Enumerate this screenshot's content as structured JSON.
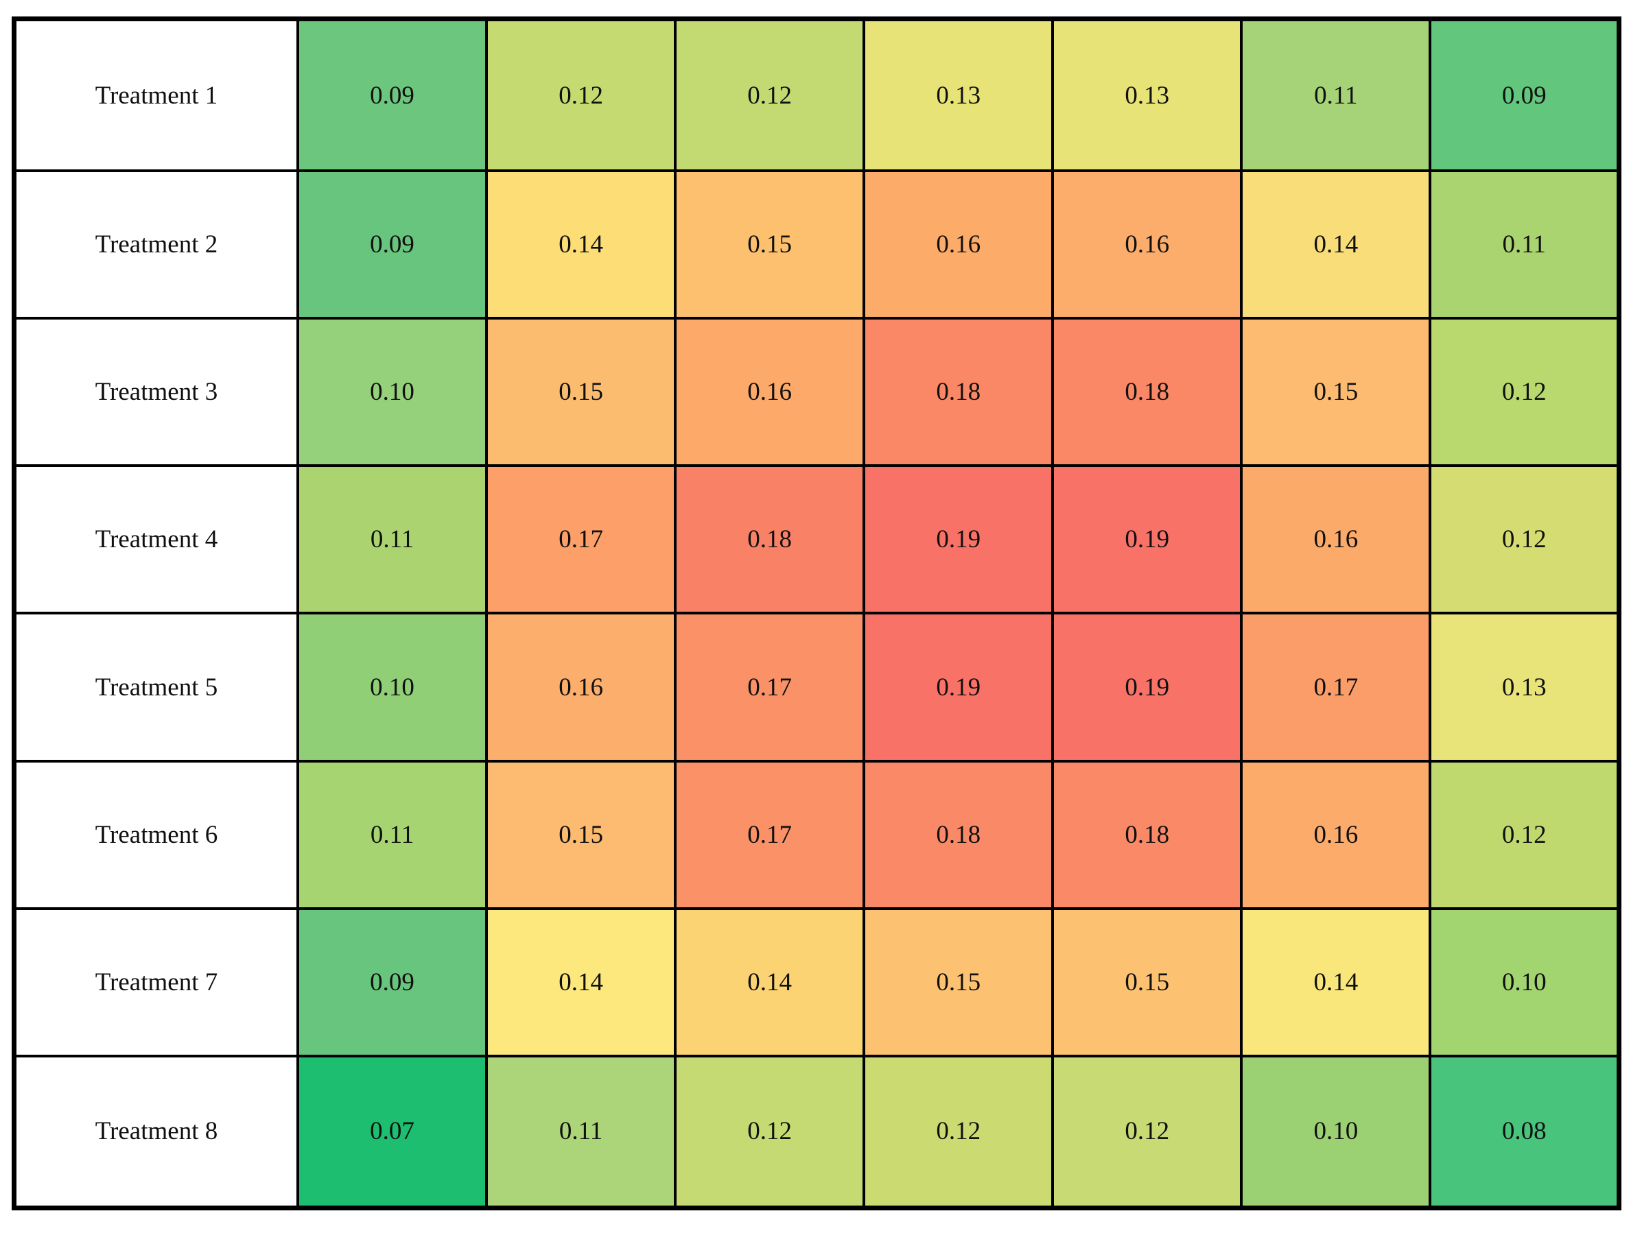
{
  "chart_data": {
    "type": "heatmap",
    "title": "",
    "row_labels": [
      "Treatment 1",
      "Treatment 2",
      "Treatment 3",
      "Treatment 4",
      "Treatment 5",
      "Treatment 6",
      "Treatment 7",
      "Treatment 8"
    ],
    "columns": 7,
    "values": [
      [
        0.09,
        0.12,
        0.12,
        0.13,
        0.13,
        0.11,
        0.09
      ],
      [
        0.09,
        0.14,
        0.15,
        0.16,
        0.16,
        0.14,
        0.11
      ],
      [
        0.1,
        0.15,
        0.16,
        0.18,
        0.18,
        0.15,
        0.12
      ],
      [
        0.11,
        0.17,
        0.18,
        0.19,
        0.19,
        0.16,
        0.12
      ],
      [
        0.1,
        0.16,
        0.17,
        0.19,
        0.19,
        0.17,
        0.13
      ],
      [
        0.11,
        0.15,
        0.17,
        0.18,
        0.18,
        0.16,
        0.12
      ],
      [
        0.09,
        0.14,
        0.14,
        0.15,
        0.15,
        0.14,
        0.1
      ],
      [
        0.07,
        0.11,
        0.12,
        0.12,
        0.12,
        0.1,
        0.08
      ]
    ],
    "value_format": "0.00",
    "value_range": [
      0.07,
      0.19
    ],
    "colormap": {
      "low": "#1ebe71",
      "mid": "#ece87e",
      "high": "#f97268"
    },
    "cell_colors": [
      [
        "#6cc67d",
        "#c6da72",
        "#c3da73",
        "#e8e377",
        "#e8e377",
        "#a6d377",
        "#62c67c"
      ],
      [
        "#67c57d",
        "#fcdd76",
        "#fcc06f",
        "#fcab69",
        "#fcad6b",
        "#f8dd78",
        "#aad46f"
      ],
      [
        "#95d07a",
        "#fcbc70",
        "#fca96a",
        "#fa8766",
        "#fa8766",
        "#fcbb70",
        "#b9d96f"
      ],
      [
        "#abd470",
        "#fc9f69",
        "#f98165",
        "#f97268",
        "#f97268",
        "#fcaa6a",
        "#d5dc71"
      ],
      [
        "#90cf76",
        "#fcae6c",
        "#fa9167",
        "#f97268",
        "#f97268",
        "#fb9d69",
        "#e9e47a"
      ],
      [
        "#a5d471",
        "#fcbb71",
        "#fa9167",
        "#fa8967",
        "#fa8967",
        "#fcab6b",
        "#bfd96f"
      ],
      [
        "#68c57d",
        "#fce87c",
        "#fcd373",
        "#fcc271",
        "#fcc271",
        "#f9e77c",
        "#a2d470"
      ],
      [
        "#1ebe71",
        "#abd578",
        "#c5da73",
        "#cbdb72",
        "#c8da73",
        "#9cd173",
        "#49c47c"
      ]
    ],
    "grid": true,
    "grid_color": "#000000",
    "legend": false
  }
}
